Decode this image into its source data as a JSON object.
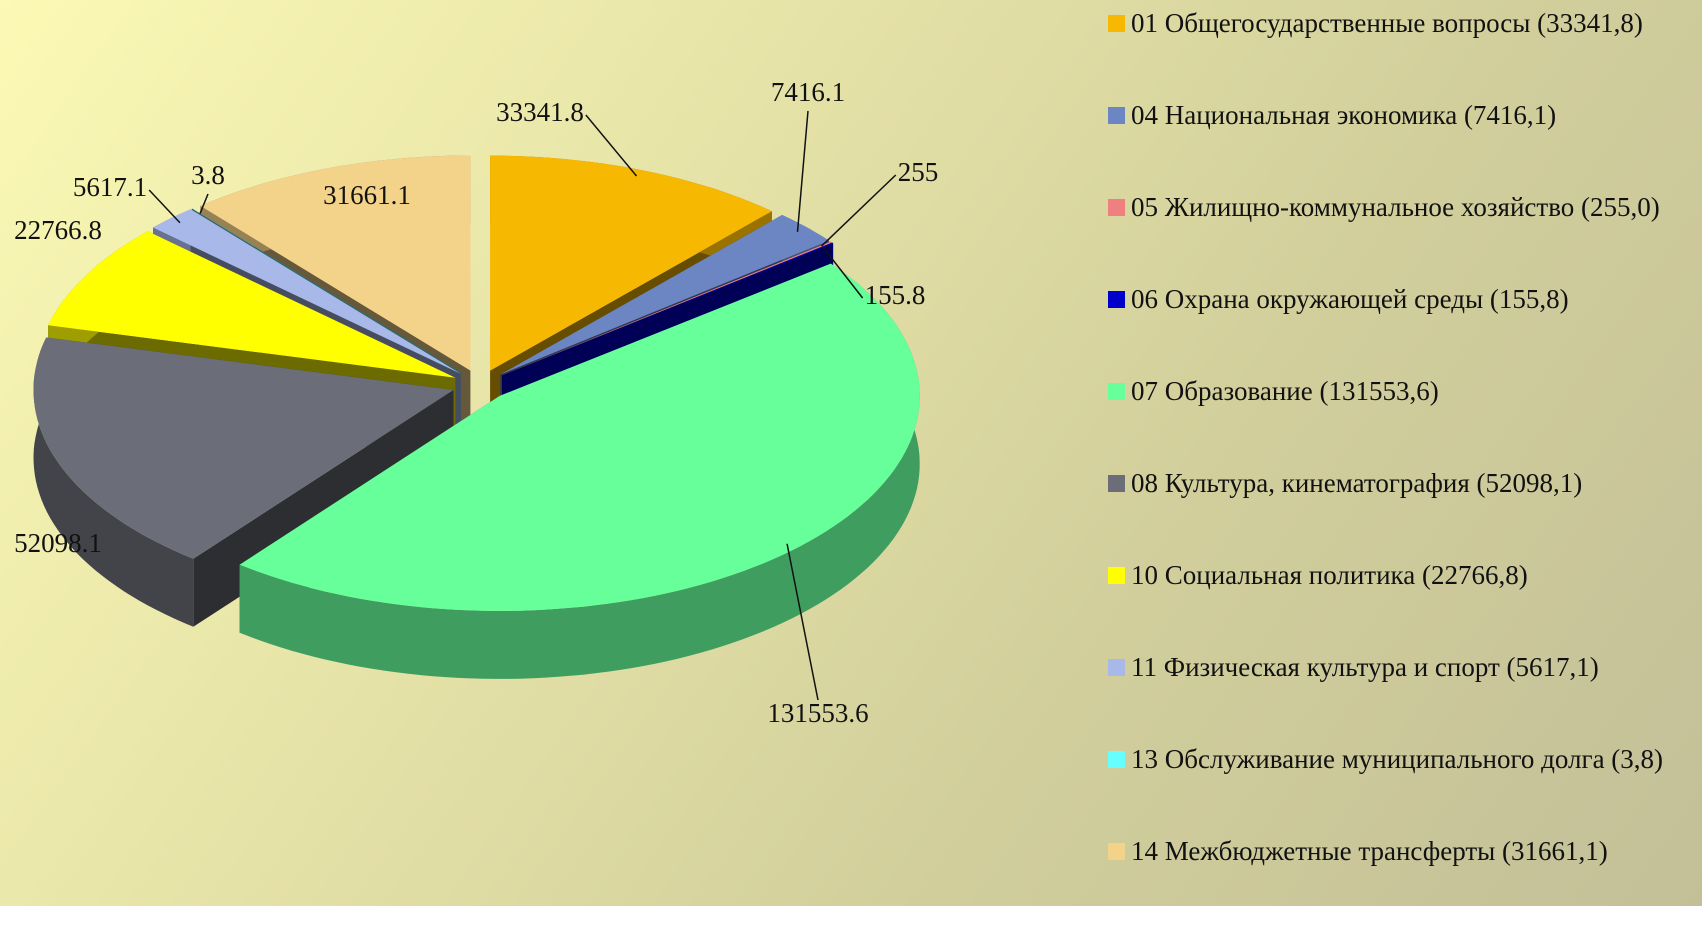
{
  "chart_data": {
    "type": "pie",
    "categories": [
      "01 Общегосударственные вопросы (33341,8)",
      "04 Национальная экономика (7416,1)",
      "05 Жилищно-коммунальное хозяйство (255,0)",
      "06 Охрана окружающей среды (155,8)",
      "07 Образование (131553,6)",
      "08 Культура, кинематография (52098,1)",
      "10 Социальная политика (22766,8)",
      "11 Физическая культура и спорт (5617,1)",
      "13 Обслуживание муниципального долга (3,8)",
      "14 Межбюджетные трансферты (31661,1)"
    ],
    "values": [
      33341.8,
      7416.1,
      255,
      155.8,
      131553.6,
      52098.1,
      22766.8,
      5617.1,
      3.8,
      31661.1
    ],
    "colors": [
      "#f6b800",
      "#6b86c2",
      "#f08080",
      "#0000cc",
      "#66ff99",
      "#6b6e78",
      "#ffff00",
      "#a8b8e8",
      "#66ffff",
      "#f3d28a"
    ],
    "legend": "right"
  }
}
